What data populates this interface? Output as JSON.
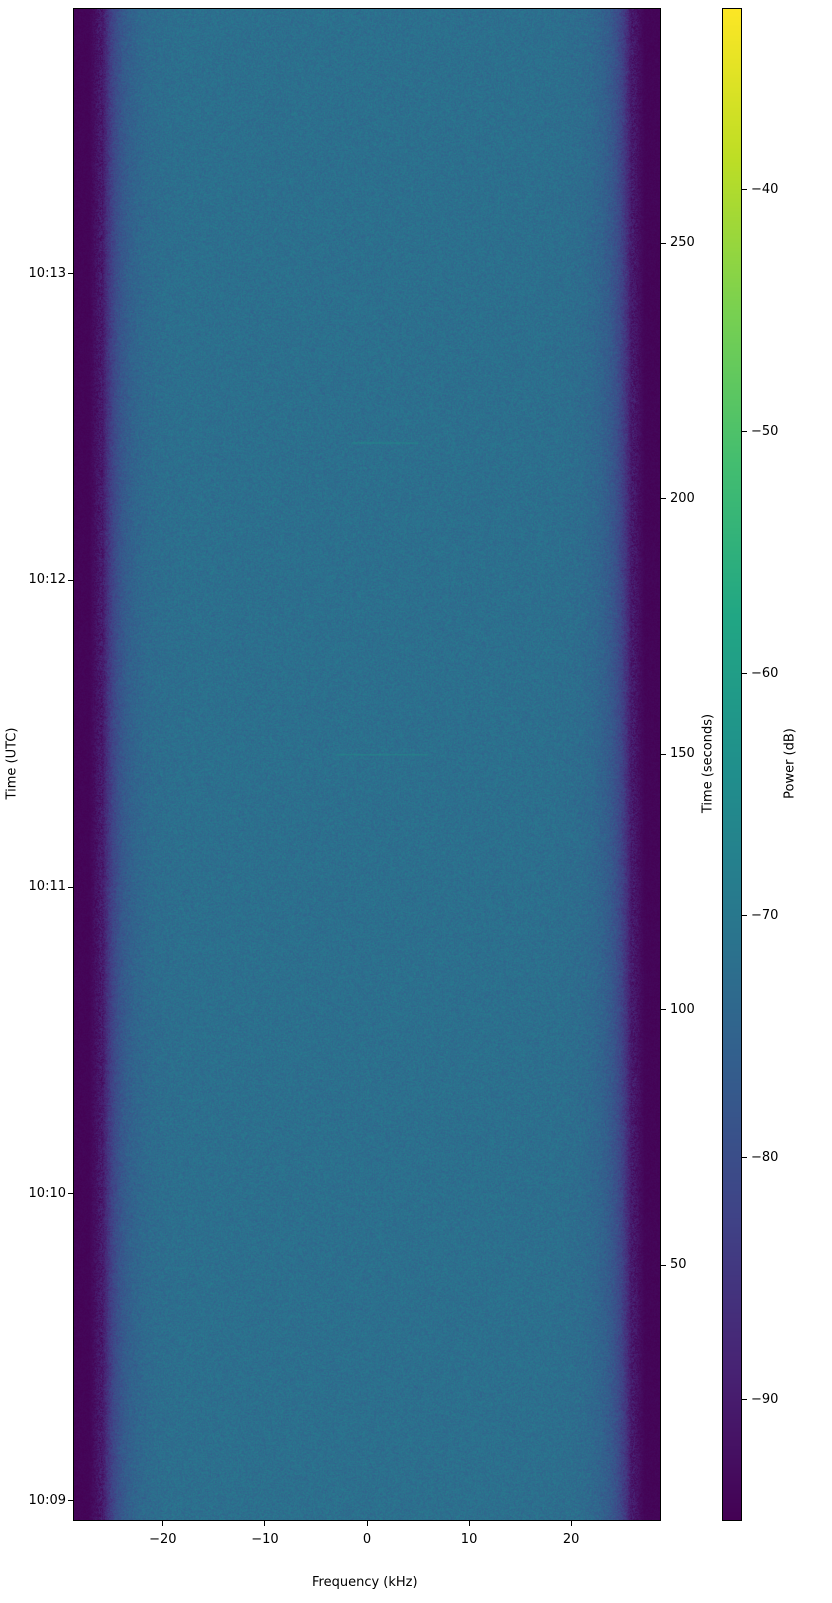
{
  "chart_data": {
    "type": "heatmap",
    "xlabel": "Frequency (kHz)",
    "ylabel_left": "Time (UTC)",
    "ylabel_right": "Time (seconds)",
    "colorbar_label": "Power (dB)",
    "xlim": [
      -28.8,
      28.8
    ],
    "ylim_seconds": [
      0,
      296
    ],
    "x_ticks": [
      -20,
      -10,
      0,
      10,
      20
    ],
    "x_tick_labels": [
      "−20",
      "−10",
      "0",
      "10",
      "20"
    ],
    "y_left_ticks_seconds": [
      4,
      64,
      124,
      184,
      244
    ],
    "y_left_tick_labels": [
      "10:09",
      "10:10",
      "10:11",
      "10:12",
      "10:13"
    ],
    "y_right_ticks": [
      50,
      100,
      150,
      200,
      250
    ],
    "y_right_tick_labels": [
      "50",
      "100",
      "150",
      "200",
      "250"
    ],
    "colorbar_range": [
      -95,
      -32.5
    ],
    "colorbar_ticks": [
      -40,
      -50,
      -60,
      -70,
      -80,
      -90
    ],
    "colorbar_tick_labels": [
      "−40",
      "−50",
      "−60",
      "−70",
      "−80",
      "−90"
    ],
    "colormap": "viridis",
    "passband_level_db": -72,
    "noise_floor_db": -95,
    "passband_edges_khz": [
      -26,
      26
    ],
    "faint_signals": [
      {
        "time_s": 150,
        "freq_khz": [
          -3,
          6
        ]
      },
      {
        "time_s": 211,
        "freq_khz": [
          -1.5,
          5
        ]
      }
    ]
  }
}
